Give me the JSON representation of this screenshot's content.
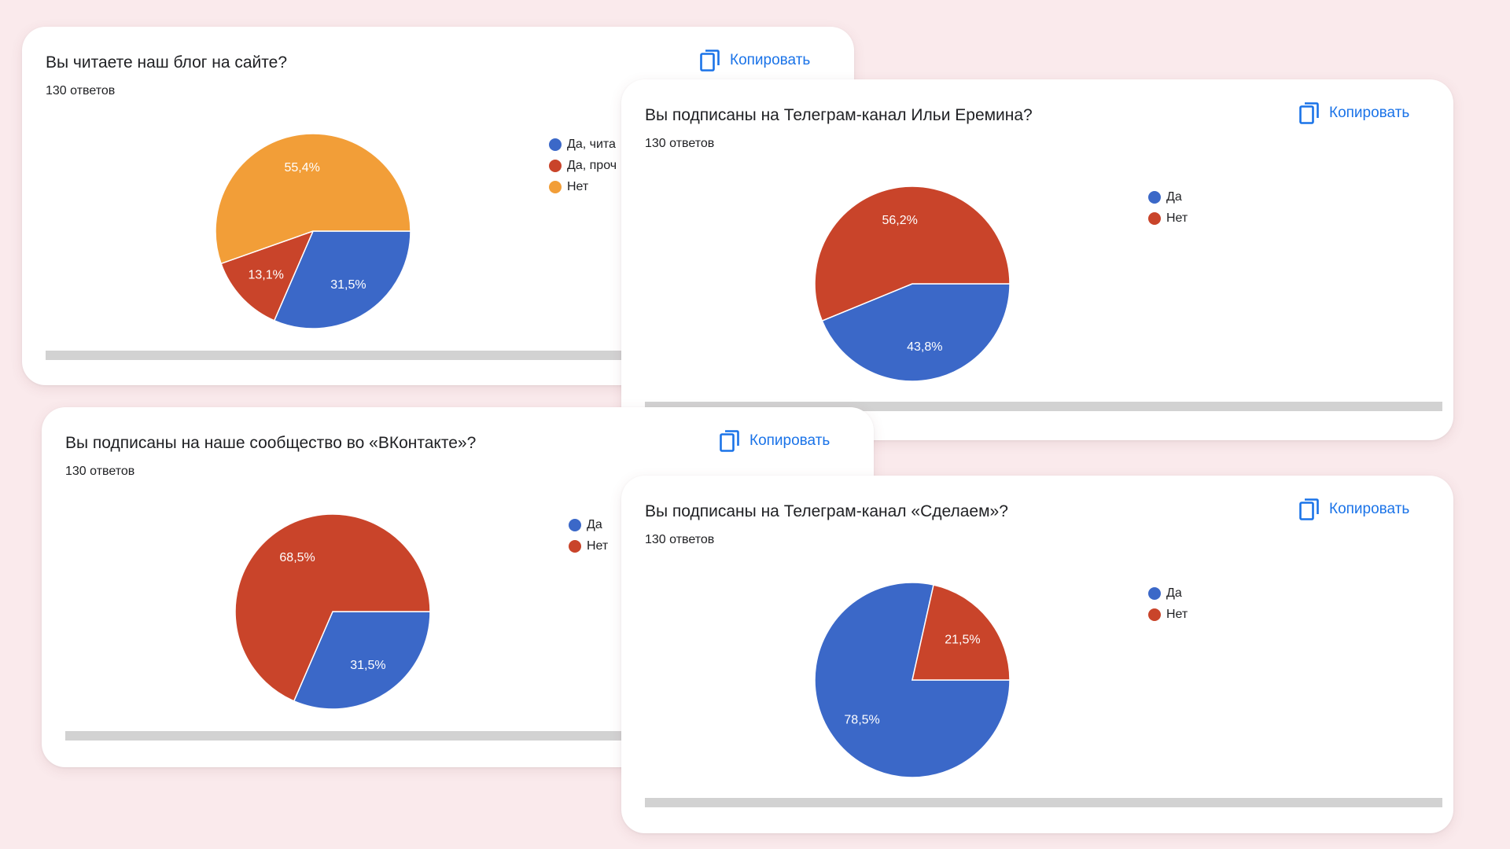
{
  "colors": {
    "blue": "#3b68c8",
    "red": "#c9442a",
    "orange": "#f29e38",
    "link": "#1a73e8",
    "background": "#faeaec"
  },
  "copy_label": "Копировать",
  "copy_icon": "copy-icon",
  "cards": [
    {
      "title": "Вы читаете наш блог на сайте?",
      "count": "130 ответов",
      "legend": [
        {
          "label": "Да, чита",
          "color": "#3b68c8"
        },
        {
          "label": "Да, проч",
          "color": "#c9442a"
        },
        {
          "label": "Нет",
          "color": "#f29e38"
        }
      ]
    },
    {
      "title": "Вы подписаны на Телеграм-канал Ильи Еремина?",
      "count": "130 ответов",
      "legend": [
        {
          "label": "Да",
          "color": "#3b68c8"
        },
        {
          "label": "Нет",
          "color": "#c9442a"
        }
      ]
    },
    {
      "title": "Вы подписаны на наше сообщество во «ВКонтакте»?",
      "count": "130 ответов",
      "legend": [
        {
          "label": "Да",
          "color": "#3b68c8"
        },
        {
          "label": "Нет",
          "color": "#c9442a"
        }
      ]
    },
    {
      "title": "Вы подписаны на Телеграм-канал «Сделаем»?",
      "count": "130 ответов",
      "legend": [
        {
          "label": "Да",
          "color": "#3b68c8"
        },
        {
          "label": "Нет",
          "color": "#c9442a"
        }
      ]
    }
  ],
  "chart_data": [
    {
      "type": "pie",
      "title": "Вы читаете наш блог на сайте?",
      "categories": [
        "Да, чита",
        "Да, проч",
        "Нет"
      ],
      "values": [
        31.5,
        13.1,
        55.4
      ],
      "value_labels": [
        "31,5%",
        "13,1%",
        "55,4%"
      ],
      "colors": [
        "#3b68c8",
        "#c9442a",
        "#f29e38"
      ],
      "legend": "right"
    },
    {
      "type": "pie",
      "title": "Вы подписаны на Телеграм-канал Ильи Еремина?",
      "categories": [
        "Да",
        "Нет"
      ],
      "values": [
        43.8,
        56.2
      ],
      "value_labels": [
        "43,8%",
        "56,2%"
      ],
      "colors": [
        "#3b68c8",
        "#c9442a"
      ],
      "legend": "right"
    },
    {
      "type": "pie",
      "title": "Вы подписаны на наше сообщество во «ВКонтакте»?",
      "categories": [
        "Да",
        "Нет"
      ],
      "values": [
        31.5,
        68.5
      ],
      "value_labels": [
        "31,5%",
        "68,5%"
      ],
      "colors": [
        "#3b68c8",
        "#c9442a"
      ],
      "legend": "right"
    },
    {
      "type": "pie",
      "title": "Вы подписаны на Телеграм-канал «Сделаем»?",
      "categories": [
        "Да",
        "Нет"
      ],
      "values": [
        78.5,
        21.5
      ],
      "value_labels": [
        "78,5%",
        "21,5%"
      ],
      "colors": [
        "#3b68c8",
        "#c9442a"
      ],
      "legend": "right"
    }
  ]
}
